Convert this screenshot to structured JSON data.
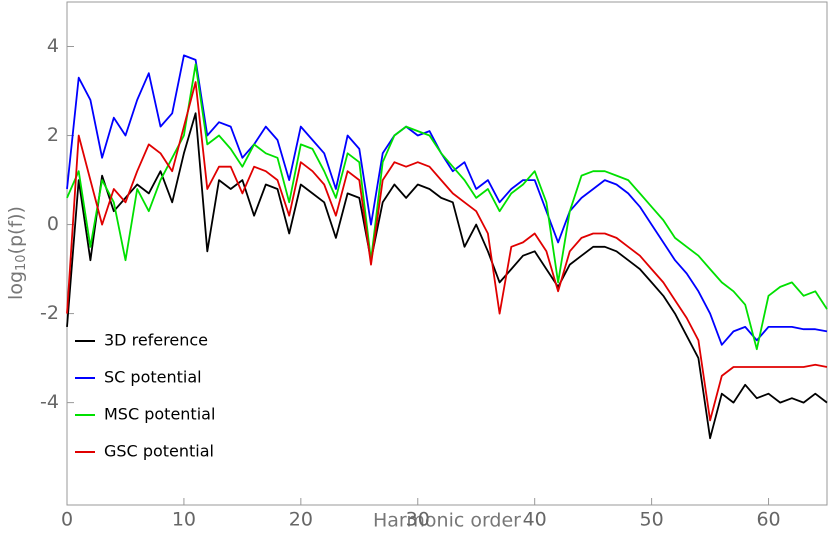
{
  "chart_data": {
    "type": "line",
    "xlabel": "Harmonic order",
    "ylabel": {
      "base": "log",
      "sub": "10",
      "rest": "(p(f))"
    },
    "xlim": [
      0,
      65
    ],
    "ylim": [
      -6.3,
      5
    ],
    "xticks": [
      0,
      10,
      20,
      30,
      40,
      50,
      60
    ],
    "yticks": [
      -4,
      -2,
      0,
      2,
      4
    ],
    "legend": "lower-left",
    "x": [
      0,
      1,
      2,
      3,
      4,
      5,
      6,
      7,
      8,
      9,
      10,
      11,
      12,
      13,
      14,
      15,
      16,
      17,
      18,
      19,
      20,
      21,
      22,
      23,
      24,
      25,
      26,
      27,
      28,
      29,
      30,
      31,
      32,
      33,
      34,
      35,
      36,
      37,
      38,
      39,
      40,
      41,
      42,
      43,
      44,
      45,
      46,
      47,
      48,
      49,
      50,
      51,
      52,
      53,
      54,
      55,
      56,
      57,
      58,
      59,
      60,
      61,
      62,
      63,
      64,
      65
    ],
    "series": [
      {
        "name": "3D reference",
        "color": "#000000",
        "values": [
          -2.3,
          1.0,
          -0.8,
          1.1,
          0.3,
          0.6,
          0.9,
          0.7,
          1.2,
          0.5,
          1.6,
          2.5,
          -0.6,
          1.0,
          0.8,
          1.0,
          0.2,
          0.9,
          0.8,
          -0.2,
          0.9,
          0.7,
          0.5,
          -0.3,
          0.7,
          0.6,
          -0.8,
          0.5,
          0.9,
          0.6,
          0.9,
          0.8,
          0.6,
          0.5,
          -0.5,
          0,
          -0.6,
          -1.3,
          -1.0,
          -0.7,
          -0.6,
          -1.0,
          -1.4,
          -0.9,
          -0.7,
          -0.5,
          -0.5,
          -0.6,
          -0.8,
          -1.0,
          -1.3,
          -1.6,
          -2.0,
          -2.5,
          -3.0,
          -4.8,
          -3.8,
          -4.0,
          -3.6,
          -3.9,
          -3.8,
          -4.0,
          -3.9,
          -4.0,
          -3.8,
          -4.0
        ]
      },
      {
        "name": "SC potential",
        "color": "#0000ff",
        "values": [
          0.8,
          3.3,
          2.8,
          1.5,
          2.4,
          2.0,
          2.8,
          3.4,
          2.2,
          2.5,
          3.8,
          3.7,
          2.0,
          2.3,
          2.2,
          1.5,
          1.8,
          2.2,
          1.9,
          1.0,
          2.2,
          1.9,
          1.6,
          0.8,
          2.0,
          1.7,
          0.0,
          1.6,
          2.0,
          2.2,
          2.0,
          2.1,
          1.6,
          1.2,
          1.4,
          0.8,
          1.0,
          0.5,
          0.8,
          1.0,
          1.0,
          0.3,
          -0.4,
          0.3,
          0.6,
          0.8,
          1.0,
          0.9,
          0.7,
          0.4,
          0.0,
          -0.4,
          -0.8,
          -1.1,
          -1.5,
          -2.0,
          -2.7,
          -2.4,
          -2.3,
          -2.6,
          -2.3,
          -2.3,
          -2.3,
          -2.35,
          -2.35,
          -2.4
        ]
      },
      {
        "name": "MSC potential",
        "color": "#00e000",
        "values": [
          0.6,
          1.2,
          -0.5,
          1.0,
          0.5,
          -0.8,
          0.8,
          0.3,
          1.0,
          1.5,
          2.0,
          3.6,
          1.8,
          2.0,
          1.7,
          1.3,
          1.8,
          1.6,
          1.5,
          0.5,
          1.8,
          1.7,
          1.2,
          0.6,
          1.6,
          1.4,
          -0.8,
          1.4,
          2.0,
          2.2,
          2.1,
          2.0,
          1.6,
          1.3,
          1.0,
          0.6,
          0.8,
          0.3,
          0.7,
          0.9,
          1.2,
          0.5,
          -1.3,
          0.3,
          1.1,
          1.2,
          1.2,
          1.1,
          1.0,
          0.7,
          0.4,
          0.1,
          -0.3,
          -0.5,
          -0.7,
          -1.0,
          -1.3,
          -1.5,
          -1.8,
          -2.8,
          -1.6,
          -1.4,
          -1.3,
          -1.6,
          -1.5,
          -1.9
        ]
      },
      {
        "name": "GSC potential",
        "color": "#e00000",
        "values": [
          -2.0,
          2.0,
          1.0,
          0.0,
          0.8,
          0.5,
          1.2,
          1.8,
          1.6,
          1.2,
          2.2,
          3.2,
          0.8,
          1.3,
          1.3,
          0.7,
          1.3,
          1.2,
          1.0,
          0.2,
          1.4,
          1.2,
          0.9,
          0.2,
          1.2,
          1.0,
          -0.9,
          1.0,
          1.4,
          1.3,
          1.4,
          1.3,
          1.0,
          0.7,
          0.5,
          0.3,
          -0.2,
          -2.0,
          -0.5,
          -0.4,
          -0.2,
          -0.6,
          -1.5,
          -0.6,
          -0.3,
          -0.2,
          -0.2,
          -0.3,
          -0.5,
          -0.7,
          -1.0,
          -1.3,
          -1.7,
          -2.1,
          -2.6,
          -4.4,
          -3.4,
          -3.2,
          -3.2,
          -3.2,
          -3.2,
          -3.2,
          -3.2,
          -3.2,
          -3.15,
          -3.2
        ]
      }
    ]
  }
}
